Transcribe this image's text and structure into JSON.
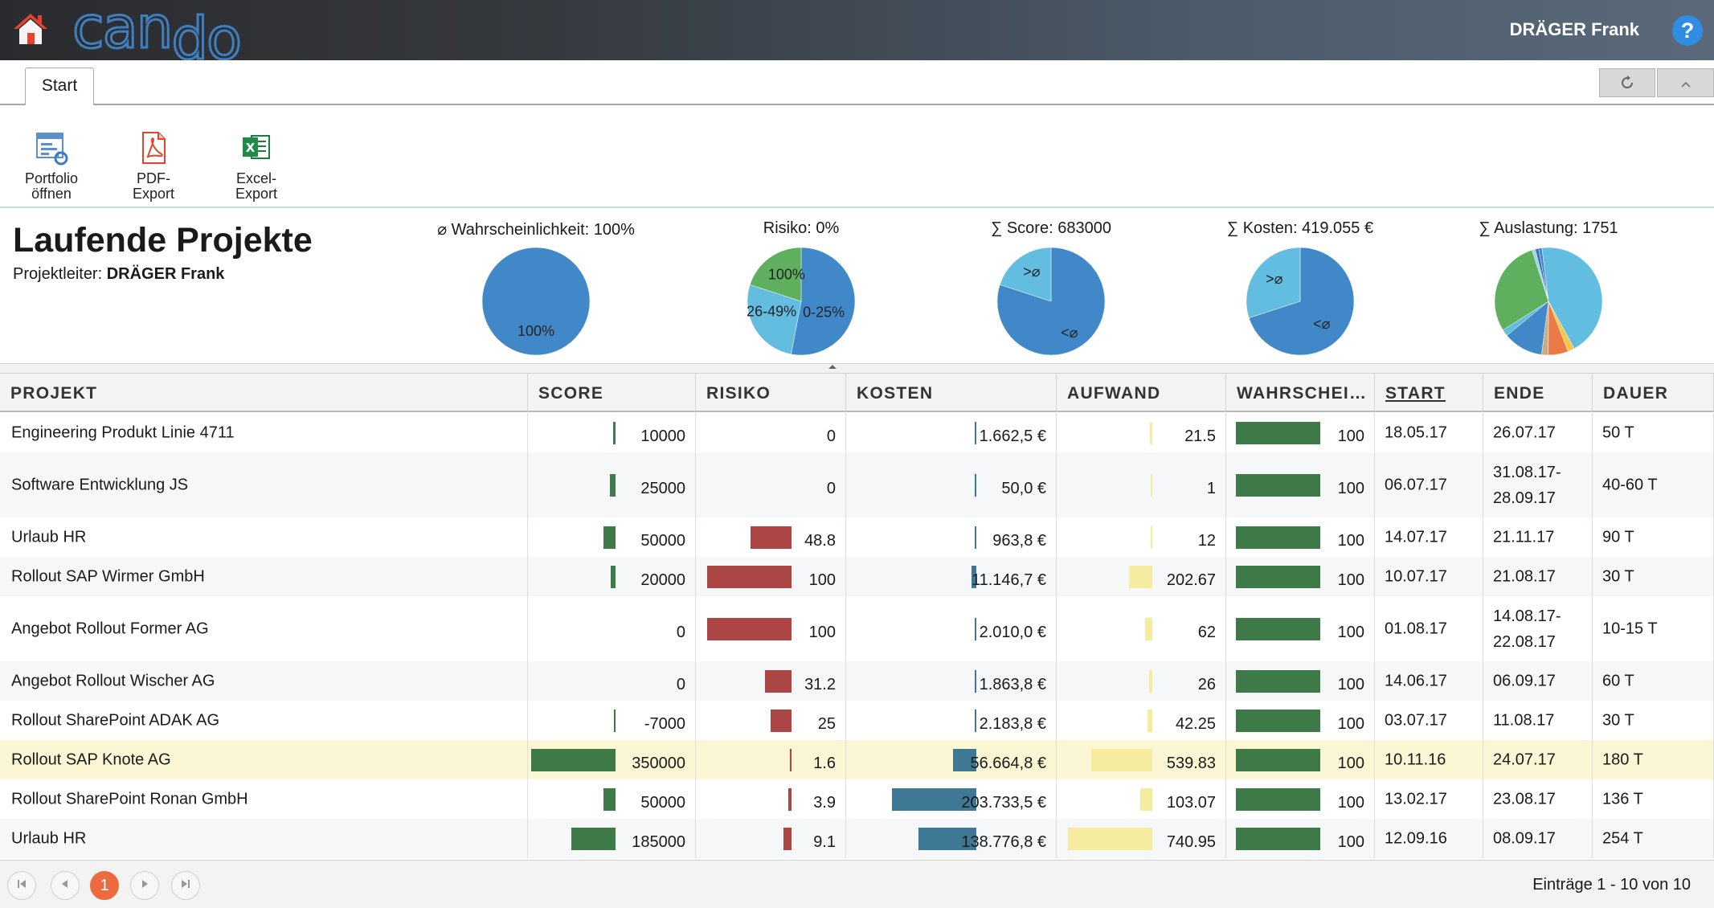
{
  "app": {
    "logo_part1": "can",
    "logo_part2": "do",
    "user": "DRÄGER Frank",
    "help": "?"
  },
  "tabs": [
    {
      "label": "Start"
    }
  ],
  "toolbar_icons": {
    "refresh": "refresh-icon",
    "collapse": "chevron-up-icon"
  },
  "ribbon": {
    "portfolio": {
      "line1": "Portfolio",
      "line2": "öffnen"
    },
    "pdf": {
      "line1": "PDF-",
      "line2": "Export"
    },
    "excel": {
      "line1": "Excel-",
      "line2": "Export"
    }
  },
  "header": {
    "title": "Laufende Projekte",
    "leader_label": "Projektleiter:",
    "leader_name": "DRÄGER Frank"
  },
  "kpis": [
    {
      "title": "⌀ Wahrscheinlichkeit: 100%",
      "chart_data": {
        "type": "pie",
        "slices": [
          {
            "label": "100%",
            "value": 100,
            "color": "#4188c8"
          }
        ]
      }
    },
    {
      "title": "Risiko: 0%",
      "chart_data": {
        "type": "pie",
        "slices": [
          {
            "label": "0-25%",
            "value": 53,
            "color": "#4188c8"
          },
          {
            "label": "26-49%",
            "value": 27,
            "color": "#63bde0"
          },
          {
            "label": "100%",
            "value": 20,
            "color": "#5eaf5e"
          }
        ]
      }
    },
    {
      "title": "∑ Score: 683000",
      "chart_data": {
        "type": "pie",
        "slices": [
          {
            "label": "<⌀",
            "value": 80,
            "color": "#4188c8"
          },
          {
            "label": ">⌀",
            "value": 20,
            "color": "#63bde0"
          }
        ]
      }
    },
    {
      "title": "∑ Kosten: 419.055 €",
      "chart_data": {
        "type": "pie",
        "slices": [
          {
            "label": "<⌀",
            "value": 70,
            "color": "#4188c8"
          },
          {
            "label": ">⌀",
            "value": 30,
            "color": "#63bde0"
          }
        ]
      }
    },
    {
      "title": "∑ Auslastung: 1751",
      "chart_data": {
        "type": "pie",
        "slices": [
          {
            "label": "",
            "value": 44,
            "color": "#63bde0"
          },
          {
            "label": "",
            "value": 2,
            "color": "#f2c94c"
          },
          {
            "label": "",
            "value": 6,
            "color": "#ea7a46"
          },
          {
            "label": "",
            "value": 2,
            "color": "#c9ac84"
          },
          {
            "label": "",
            "value": 12,
            "color": "#4188c8"
          },
          {
            "label": "",
            "value": 2,
            "color": "#63bde0"
          },
          {
            "label": "",
            "value": 29,
            "color": "#5eaf5e"
          },
          {
            "label": "",
            "value": 1,
            "color": "#9ad3ee"
          },
          {
            "label": "",
            "value": 1,
            "color": "#3a6fb0"
          },
          {
            "label": "",
            "value": 1,
            "color": "#4188c8"
          }
        ]
      }
    }
  ],
  "grid": {
    "columns": [
      {
        "key": "projekt",
        "label": "PROJEKT"
      },
      {
        "key": "score",
        "label": "SCORE"
      },
      {
        "key": "risiko",
        "label": "RISIKO"
      },
      {
        "key": "kosten",
        "label": "KOSTEN"
      },
      {
        "key": "aufwand",
        "label": "AUFWAND"
      },
      {
        "key": "wahrscheinlichkeit",
        "label": "WAHRSCHEI…"
      },
      {
        "key": "start",
        "label": "START"
      },
      {
        "key": "ende",
        "label": "ENDE"
      },
      {
        "key": "dauer",
        "label": "DAUER"
      }
    ],
    "bar_colors": {
      "score": "#3e7a47",
      "risiko": "#ab4644",
      "kosten": "#3e7894",
      "aufwand": "#f5ec9f",
      "wahrscheinlichkeit": "#3e7a47"
    },
    "rows": [
      {
        "projekt": "Engineering Produkt Linie 4711",
        "score": "10000",
        "score_v": 10000,
        "risiko": "0",
        "risiko_v": 0,
        "kosten": "1.662,5 €",
        "kosten_v": 1662.5,
        "aufwand": "21.5",
        "aufwand_v": 21.5,
        "wahrscheinlichkeit": "100",
        "wahrscheinlichkeit_v": 100,
        "start": "18.05.17",
        "ende": "26.07.17",
        "ende2": "",
        "dauer": "50 T"
      },
      {
        "projekt": "Software Entwicklung JS",
        "score": "25000",
        "score_v": 25000,
        "risiko": "0",
        "risiko_v": 0,
        "kosten": "50,0 €",
        "kosten_v": 50,
        "aufwand": "1",
        "aufwand_v": 1,
        "wahrscheinlichkeit": "100",
        "wahrscheinlichkeit_v": 100,
        "start": "06.07.17",
        "ende": "31.08.17-",
        "ende2": "28.09.17",
        "dauer": "40-60 T"
      },
      {
        "projekt": "Urlaub HR",
        "score": "50000",
        "score_v": 50000,
        "risiko": "48.8",
        "risiko_v": 48.8,
        "kosten": "963,8 €",
        "kosten_v": 963.8,
        "aufwand": "12",
        "aufwand_v": 12,
        "wahrscheinlichkeit": "100",
        "wahrscheinlichkeit_v": 100,
        "start": "14.07.17",
        "ende": "21.11.17",
        "ende2": "",
        "dauer": "90 T"
      },
      {
        "projekt": "Rollout SAP Wirmer GmbH",
        "score": "20000",
        "score_v": 20000,
        "risiko": "100",
        "risiko_v": 100,
        "kosten": "11.146,7 €",
        "kosten_v": 11146.7,
        "aufwand": "202.67",
        "aufwand_v": 202.67,
        "wahrscheinlichkeit": "100",
        "wahrscheinlichkeit_v": 100,
        "start": "10.07.17",
        "ende": "21.08.17",
        "ende2": "",
        "dauer": "30 T"
      },
      {
        "projekt": "Angebot Rollout Former AG",
        "score": "0",
        "score_v": 0,
        "risiko": "100",
        "risiko_v": 100,
        "kosten": "2.010,0 €",
        "kosten_v": 2010,
        "aufwand": "62",
        "aufwand_v": 62,
        "wahrscheinlichkeit": "100",
        "wahrscheinlichkeit_v": 100,
        "start": "01.08.17",
        "ende": "14.08.17-",
        "ende2": "22.08.17",
        "dauer": "10-15 T"
      },
      {
        "projekt": "Angebot Rollout Wischer AG",
        "score": "0",
        "score_v": 0,
        "risiko": "31.2",
        "risiko_v": 31.2,
        "kosten": "1.863,8 €",
        "kosten_v": 1863.8,
        "aufwand": "26",
        "aufwand_v": 26,
        "wahrscheinlichkeit": "100",
        "wahrscheinlichkeit_v": 100,
        "start": "14.06.17",
        "ende": "06.09.17",
        "ende2": "",
        "dauer": "60 T"
      },
      {
        "projekt": "Rollout SharePoint ADAK AG",
        "score": "-7000",
        "score_v": -7000,
        "risiko": "25",
        "risiko_v": 25,
        "kosten": "2.183,8 €",
        "kosten_v": 2183.8,
        "aufwand": "42.25",
        "aufwand_v": 42.25,
        "wahrscheinlichkeit": "100",
        "wahrscheinlichkeit_v": 100,
        "start": "03.07.17",
        "ende": "11.08.17",
        "ende2": "",
        "dauer": "30 T"
      },
      {
        "projekt": "Rollout SAP Knote AG",
        "score": "350000",
        "score_v": 350000,
        "risiko": "1.6",
        "risiko_v": 1.6,
        "kosten": "56.664,8 €",
        "kosten_v": 56664.8,
        "aufwand": "539.83",
        "aufwand_v": 539.83,
        "wahrscheinlichkeit": "100",
        "wahrscheinlichkeit_v": 100,
        "start": "10.11.16",
        "ende": "24.07.17",
        "ende2": "",
        "dauer": "180 T"
      },
      {
        "projekt": "Rollout SharePoint Ronan GmbH",
        "score": "50000",
        "score_v": 50000,
        "risiko": "3.9",
        "risiko_v": 3.9,
        "kosten": "203.733,5 €",
        "kosten_v": 203733.5,
        "aufwand": "103.07",
        "aufwand_v": 103.07,
        "wahrscheinlichkeit": "100",
        "wahrscheinlichkeit_v": 100,
        "start": "13.02.17",
        "ende": "23.08.17",
        "ende2": "",
        "dauer": "136 T"
      },
      {
        "projekt": "Urlaub HR",
        "score": "185000",
        "score_v": 185000,
        "risiko": "9.1",
        "risiko_v": 9.1,
        "kosten": "138.776,8 €",
        "kosten_v": 138776.8,
        "aufwand": "740.95",
        "aufwand_v": 740.95,
        "wahrscheinlichkeit": "100",
        "wahrscheinlichkeit_v": 100,
        "start": "12.09.16",
        "ende": "08.09.17",
        "ende2": "",
        "dauer": "254 T"
      }
    ],
    "selected_row": 7
  },
  "pager": {
    "first_icon": "first-page-icon",
    "prev_icon": "prev-page-icon",
    "current": "1",
    "next_icon": "next-page-icon",
    "last_icon": "last-page-icon",
    "info": "Einträge 1 - 10 von 10"
  }
}
